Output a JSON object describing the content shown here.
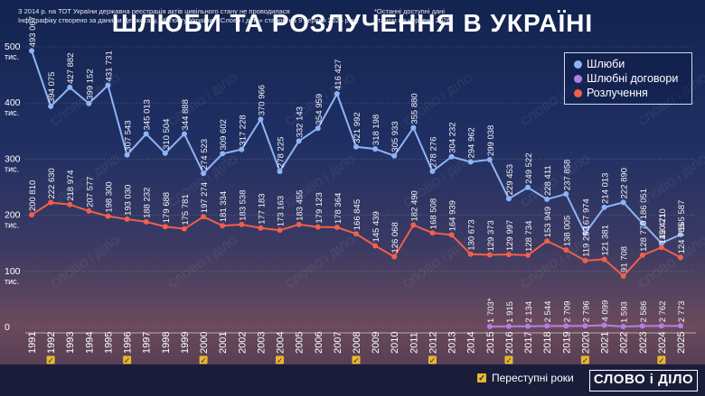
{
  "title": "ШЛЮБИ ТА РОЗЛУЧЕННЯ В УКРАЇНІ",
  "footnote": "З 2014 р. на ТОТ України державна реєстрація актів цивільного стану не проводилася\nІнфографіку створено за даними Держстату, Мін'юсту України. «Слово і діло» станом на 9 червня 2026 року",
  "footnote2": "*Останні доступні дані\nстаном на червень 2026",
  "leap_label": "Переступні роки",
  "logo_text": "СЛОВО і ДІЛО",
  "watermark": "СЛОВО і ДІЛО",
  "chart_data": {
    "type": "line",
    "x": [
      "1991",
      "1992",
      "1993",
      "1994",
      "1995",
      "1996",
      "1997",
      "1998",
      "1999",
      "2000",
      "2001",
      "2002",
      "2003",
      "2004",
      "2005",
      "2006",
      "2007",
      "2008",
      "2009",
      "2010",
      "2011",
      "2012",
      "2013",
      "2014",
      "2015",
      "2016",
      "2017",
      "2018",
      "2019",
      "2020",
      "2021",
      "2022",
      "2023",
      "2024",
      "2025"
    ],
    "leap_years": [
      "1992",
      "1996",
      "2000",
      "2004",
      "2008",
      "2012",
      "2016",
      "2020",
      "2024"
    ],
    "ylim": [
      0,
      500000
    ],
    "yticks": [
      {
        "v": 500000,
        "label": "500",
        "unit": "тис."
      },
      {
        "v": 400000,
        "label": "400",
        "unit": "тис."
      },
      {
        "v": 300000,
        "label": "300",
        "unit": "тис."
      },
      {
        "v": 200000,
        "label": "200",
        "unit": "тис."
      },
      {
        "v": 100000,
        "label": "100",
        "unit": "тис."
      },
      {
        "v": 0,
        "label": "0",
        "unit": ""
      }
    ],
    "legend_position": "top-right",
    "series": [
      {
        "name": "Шлюби",
        "color": "#8fb4f5",
        "values": [
          493067,
          394075,
          427882,
          399152,
          431731,
          307543,
          345013,
          310504,
          344888,
          274523,
          309602,
          317228,
          370966,
          278225,
          332143,
          354959,
          416427,
          321992,
          318198,
          305933,
          355880,
          278276,
          304232,
          294962,
          299038,
          229453,
          249522,
          228411,
          237858,
          167974,
          214013,
          222890,
          186051,
          150210,
          165587
        ],
        "labels": [
          "493 067",
          "394 075",
          "427 882",
          "399 152",
          "431 731",
          "307 543",
          "345 013",
          "310 504",
          "344 888",
          "274 523",
          "309 602",
          "317 228",
          "370 966",
          "278 225",
          "332 143",
          "354 959",
          "416 427",
          "321 992",
          "318 198",
          "305 933",
          "355 880",
          "278 276",
          "304 232",
          "294 962",
          "299 038",
          "229 453",
          "249 522",
          "228 411",
          "237 858",
          "167 974",
          "214 013",
          "222 890",
          "186 051",
          "150 210",
          "165 587"
        ]
      },
      {
        "name": "Розлучення",
        "color": "#f0604a",
        "values": [
          200810,
          222630,
          218974,
          207577,
          198300,
          193030,
          188232,
          179688,
          175781,
          197274,
          181334,
          183538,
          177183,
          173163,
          183455,
          179123,
          178364,
          166845,
          145439,
          126068,
          182490,
          168508,
          164939,
          130673,
          129373,
          129997,
          128734,
          153949,
          138005,
          119253,
          121381,
          91708,
          128770,
          142471,
          124785
        ],
        "labels": [
          "200 810",
          "222 630",
          "218 974",
          "207 577",
          "198 300",
          "193 030",
          "188 232",
          "179 688",
          "175 781",
          "197 274",
          "181 334",
          "183 538",
          "177 183",
          "173 163",
          "183 455",
          "179 123",
          "178 364",
          "166 845",
          "145 439",
          "126 068",
          "182 490",
          "168 508",
          "164 939",
          "130 673",
          "129 373",
          "129 997",
          "128 734",
          "153 949",
          "138 005",
          "119 253",
          "121 381",
          "91 708",
          "128 770",
          "142 471",
          "124 785"
        ]
      },
      {
        "name": "Шлюбні договори",
        "color": "#b27fe8",
        "x": [
          "2015",
          "2016",
          "2017",
          "2018",
          "2019",
          "2020",
          "2021",
          "2022",
          "2023",
          "2024",
          "2025"
        ],
        "values": [
          1703,
          1915,
          2134,
          2544,
          2709,
          2796,
          4099,
          1593,
          2586,
          2762,
          2773
        ],
        "labels": [
          "1 703*",
          "1 915",
          "2 134",
          "2 544",
          "2 709",
          "2 796",
          "4 099",
          "1 593",
          "2 586",
          "2 762",
          "2 773"
        ]
      }
    ]
  }
}
